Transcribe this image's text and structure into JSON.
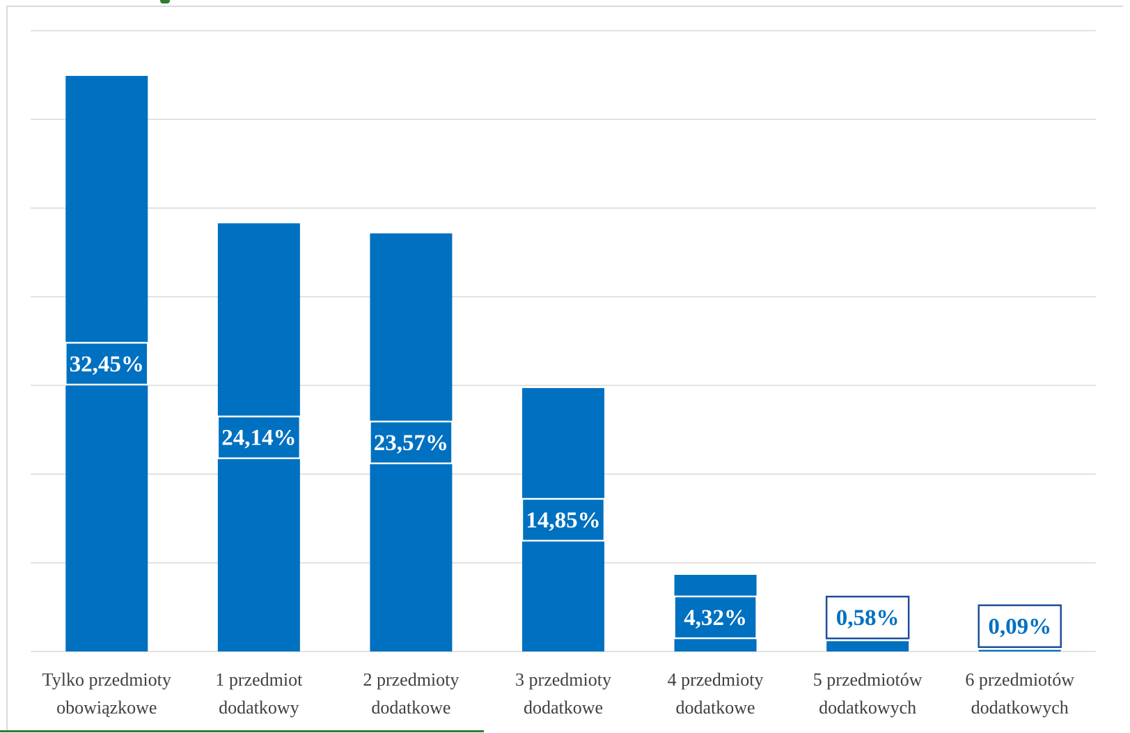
{
  "chart_data": {
    "type": "bar",
    "categories": [
      [
        "Tylko przedmioty",
        "obowiązkowe"
      ],
      [
        "1 przedmiot",
        "dodatkowy"
      ],
      [
        "2 przedmioty",
        "dodatkowe"
      ],
      [
        "3 przedmioty",
        "dodatkowe"
      ],
      [
        "4 przedmioty",
        "dodatkowe"
      ],
      [
        "5 przedmiotów",
        "dodatkowych"
      ],
      [
        "6 przedmiotów",
        "dodatkowych"
      ]
    ],
    "values": [
      32.45,
      24.14,
      23.57,
      14.85,
      4.32,
      0.58,
      0.09
    ],
    "value_labels": [
      "32,45%",
      "24,14%",
      "23,57%",
      "14,85%",
      "4,32%",
      "0,58%",
      "0,09%"
    ],
    "title": "",
    "xlabel": "",
    "ylabel": "",
    "ylim": [
      0,
      35
    ],
    "grid": true,
    "legend": "none",
    "colors": {
      "bar": "#0070c0",
      "grid": "#d9d9d9",
      "label_dark": "#404040",
      "label_light": "#ffffff"
    }
  }
}
